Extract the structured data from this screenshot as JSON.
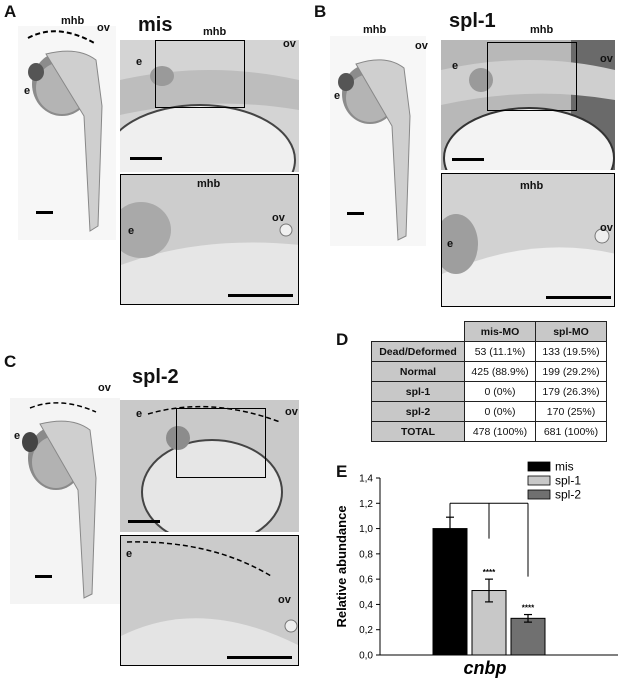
{
  "panels": {
    "A": {
      "letter": "A",
      "title": "mis",
      "labels": {
        "mhb": "mhb",
        "ov": "ov",
        "e": "e"
      }
    },
    "B": {
      "letter": "B",
      "title": "spl-1",
      "labels": {
        "mhb": "mhb",
        "ov": "ov",
        "e": "e"
      }
    },
    "C": {
      "letter": "C",
      "title": "spl-2",
      "labels": {
        "ov": "ov",
        "e": "e"
      }
    },
    "D": {
      "letter": "D"
    },
    "E": {
      "letter": "E"
    }
  },
  "table": {
    "headers": [
      "",
      "mis-MO",
      "spl-MO"
    ],
    "rows": [
      [
        "Dead/Deformed",
        "53 (11.1%)",
        "133 (19.5%)"
      ],
      [
        "Normal",
        "425 (88.9%)",
        "199 (29.2%)"
      ],
      [
        "spl-1",
        "0 (0%)",
        "179 (26.3%)"
      ],
      [
        "spl-2",
        "0 (0%)",
        "170 (25%)"
      ],
      [
        "TOTAL",
        "478 (100%)",
        "681 (100%)"
      ]
    ]
  },
  "chart_data": {
    "type": "bar",
    "categories": [
      "cnbp"
    ],
    "xlabel": "cnbp",
    "ylabel": "Relative abundance",
    "ylim": [
      0,
      1.4
    ],
    "yticks": [
      "0,0",
      "0,2",
      "0,4",
      "0,6",
      "0,8",
      "1,0",
      "1,2",
      "1,4"
    ],
    "series": [
      {
        "name": "mis",
        "values": [
          1.0
        ],
        "error": [
          0.09
        ],
        "color": "#000000",
        "annotation": ""
      },
      {
        "name": "spl-1",
        "values": [
          0.51
        ],
        "error": [
          0.09
        ],
        "color": "#c8c8c8",
        "annotation": "****"
      },
      {
        "name": "spl-2",
        "values": [
          0.29
        ],
        "error": [
          0.03
        ],
        "color": "#707070",
        "annotation": "****"
      }
    ],
    "legend": "top-right",
    "grid": false
  }
}
